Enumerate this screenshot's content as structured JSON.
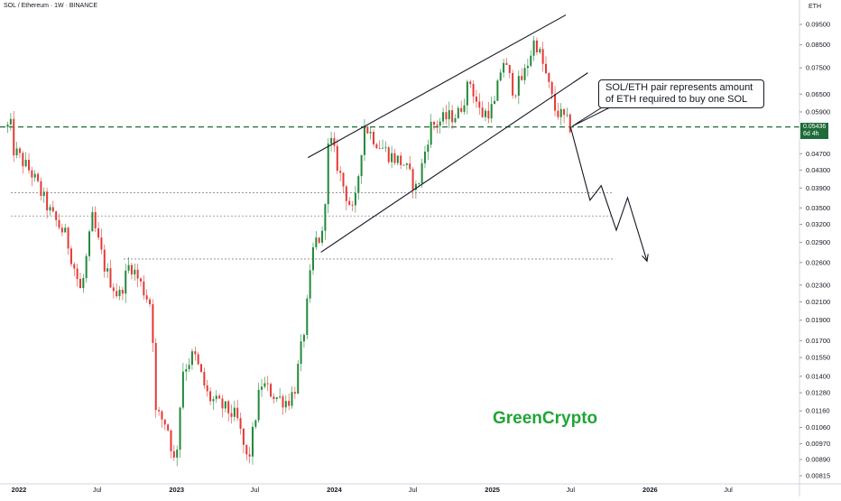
{
  "chart_data": {
    "type": "candlestick",
    "title": "SOL / Ethereum · 1W · BINANCE",
    "unit_label": "ETH",
    "y_scale": "log",
    "ylim": [
      0.0078,
      0.1
    ],
    "y_ticks": [
      "0.09500",
      "0.08500",
      "0.07500",
      "0.06500",
      "0.05900",
      "0.05436",
      "0.04700",
      "0.04300",
      "0.03900",
      "0.03500",
      "0.03200",
      "0.02900",
      "0.02600",
      "0.02300",
      "0.02100",
      "0.01900",
      "0.01700",
      "0.01550",
      "0.01400",
      "0.01280",
      "0.01160",
      "0.01060",
      "0.00970",
      "0.00890",
      "0.00815"
    ],
    "x_ticks": [
      {
        "label": "2022",
        "date": "2022-01-01"
      },
      {
        "label": "Jul",
        "date": "2022-07-01"
      },
      {
        "label": "2023",
        "date": "2023-01-01"
      },
      {
        "label": "Jul",
        "date": "2023-07-01"
      },
      {
        "label": "2024",
        "date": "2024-01-01"
      },
      {
        "label": "Jul",
        "date": "2024-07-01"
      },
      {
        "label": "2025",
        "date": "2025-01-01"
      },
      {
        "label": "Jul",
        "date": "2025-07-01"
      },
      {
        "label": "2026",
        "date": "2026-01-01"
      },
      {
        "label": "Jul",
        "date": "2026-07-01"
      }
    ],
    "last_price": {
      "value": "0.05436",
      "countdown": "6d 4h"
    },
    "series_anchors": [
      {
        "date": "2021-12-20",
        "close": 0.048
      },
      {
        "date": "2022-02-01",
        "close": 0.042
      },
      {
        "date": "2022-03-15",
        "close": 0.034
      },
      {
        "date": "2022-04-20",
        "close": 0.03
      },
      {
        "date": "2022-05-25",
        "close": 0.022
      },
      {
        "date": "2022-06-20",
        "close": 0.033
      },
      {
        "date": "2022-07-20",
        "close": 0.025
      },
      {
        "date": "2022-08-20",
        "close": 0.0215
      },
      {
        "date": "2022-09-15",
        "close": 0.026
      },
      {
        "date": "2022-10-20",
        "close": 0.022
      },
      {
        "date": "2022-11-05",
        "close": 0.0205
      },
      {
        "date": "2022-11-12",
        "close": 0.0115
      },
      {
        "date": "2022-12-10",
        "close": 0.0108
      },
      {
        "date": "2022-12-29",
        "close": 0.0085
      },
      {
        "date": "2023-01-15",
        "close": 0.0145
      },
      {
        "date": "2023-02-10",
        "close": 0.0158
      },
      {
        "date": "2023-03-15",
        "close": 0.0125
      },
      {
        "date": "2023-04-20",
        "close": 0.0118
      },
      {
        "date": "2023-05-20",
        "close": 0.0112
      },
      {
        "date": "2023-06-15",
        "close": 0.0087
      },
      {
        "date": "2023-07-15",
        "close": 0.0135
      },
      {
        "date": "2023-08-20",
        "close": 0.0125
      },
      {
        "date": "2023-09-15",
        "close": 0.0122
      },
      {
        "date": "2023-10-01",
        "close": 0.013
      },
      {
        "date": "2023-10-25",
        "close": 0.0185
      },
      {
        "date": "2023-11-15",
        "close": 0.029
      },
      {
        "date": "2023-12-05",
        "close": 0.03
      },
      {
        "date": "2023-12-20",
        "close": 0.052
      },
      {
        "date": "2024-01-20",
        "close": 0.04
      },
      {
        "date": "2024-02-15",
        "close": 0.0335
      },
      {
        "date": "2024-03-10",
        "close": 0.055
      },
      {
        "date": "2024-04-10",
        "close": 0.05
      },
      {
        "date": "2024-05-10",
        "close": 0.0465
      },
      {
        "date": "2024-06-10",
        "close": 0.0445
      },
      {
        "date": "2024-07-10",
        "close": 0.0385
      },
      {
        "date": "2024-08-10",
        "close": 0.0545
      },
      {
        "date": "2024-09-15",
        "close": 0.057
      },
      {
        "date": "2024-10-15",
        "close": 0.0585
      },
      {
        "date": "2024-11-10",
        "close": 0.07
      },
      {
        "date": "2024-12-05",
        "close": 0.058
      },
      {
        "date": "2025-01-05",
        "close": 0.0605
      },
      {
        "date": "2025-01-25",
        "close": 0.079
      },
      {
        "date": "2025-02-20",
        "close": 0.066
      },
      {
        "date": "2025-03-15",
        "close": 0.072
      },
      {
        "date": "2025-04-10",
        "close": 0.088
      },
      {
        "date": "2025-05-05",
        "close": 0.072
      },
      {
        "date": "2025-05-25",
        "close": 0.06
      },
      {
        "date": "2025-06-15",
        "close": 0.057
      },
      {
        "date": "2025-07-01",
        "close": 0.05436
      }
    ],
    "channel": {
      "upper": [
        {
          "date": "2023-11-01",
          "value": 0.046
        },
        {
          "date": "2025-06-20",
          "value": 0.1
        }
      ],
      "lower": [
        {
          "date": "2023-12-01",
          "value": 0.0275
        },
        {
          "date": "2025-08-10",
          "value": 0.073
        }
      ]
    },
    "horizontal_levels": [
      {
        "value": 0.05436,
        "style": "dashed-dark-green"
      },
      {
        "value": 0.038,
        "style": "dotted-gray"
      },
      {
        "value": 0.0335,
        "style": "dotted-gray"
      },
      {
        "value": 0.0265,
        "style": "dotted-gray"
      }
    ],
    "projection_path": [
      {
        "date": "2025-07-01",
        "value": 0.05436
      },
      {
        "date": "2025-08-15",
        "value": 0.0365
      },
      {
        "date": "2025-09-10",
        "value": 0.0395
      },
      {
        "date": "2025-10-15",
        "value": 0.031
      },
      {
        "date": "2025-11-10",
        "value": 0.037
      },
      {
        "date": "2025-12-25",
        "value": 0.0262
      }
    ],
    "annotations": [
      {
        "text": "SOL/ETH pair represents amount of ETH required to buy one SOL",
        "anchor": {
          "date": "2025-07-01",
          "value": 0.0546
        }
      }
    ],
    "watermark": "GreenCrypto",
    "colors": {
      "up": "#22893a",
      "down": "#e53935",
      "level": "#1e6b3a",
      "axis_text": "#131722"
    }
  }
}
